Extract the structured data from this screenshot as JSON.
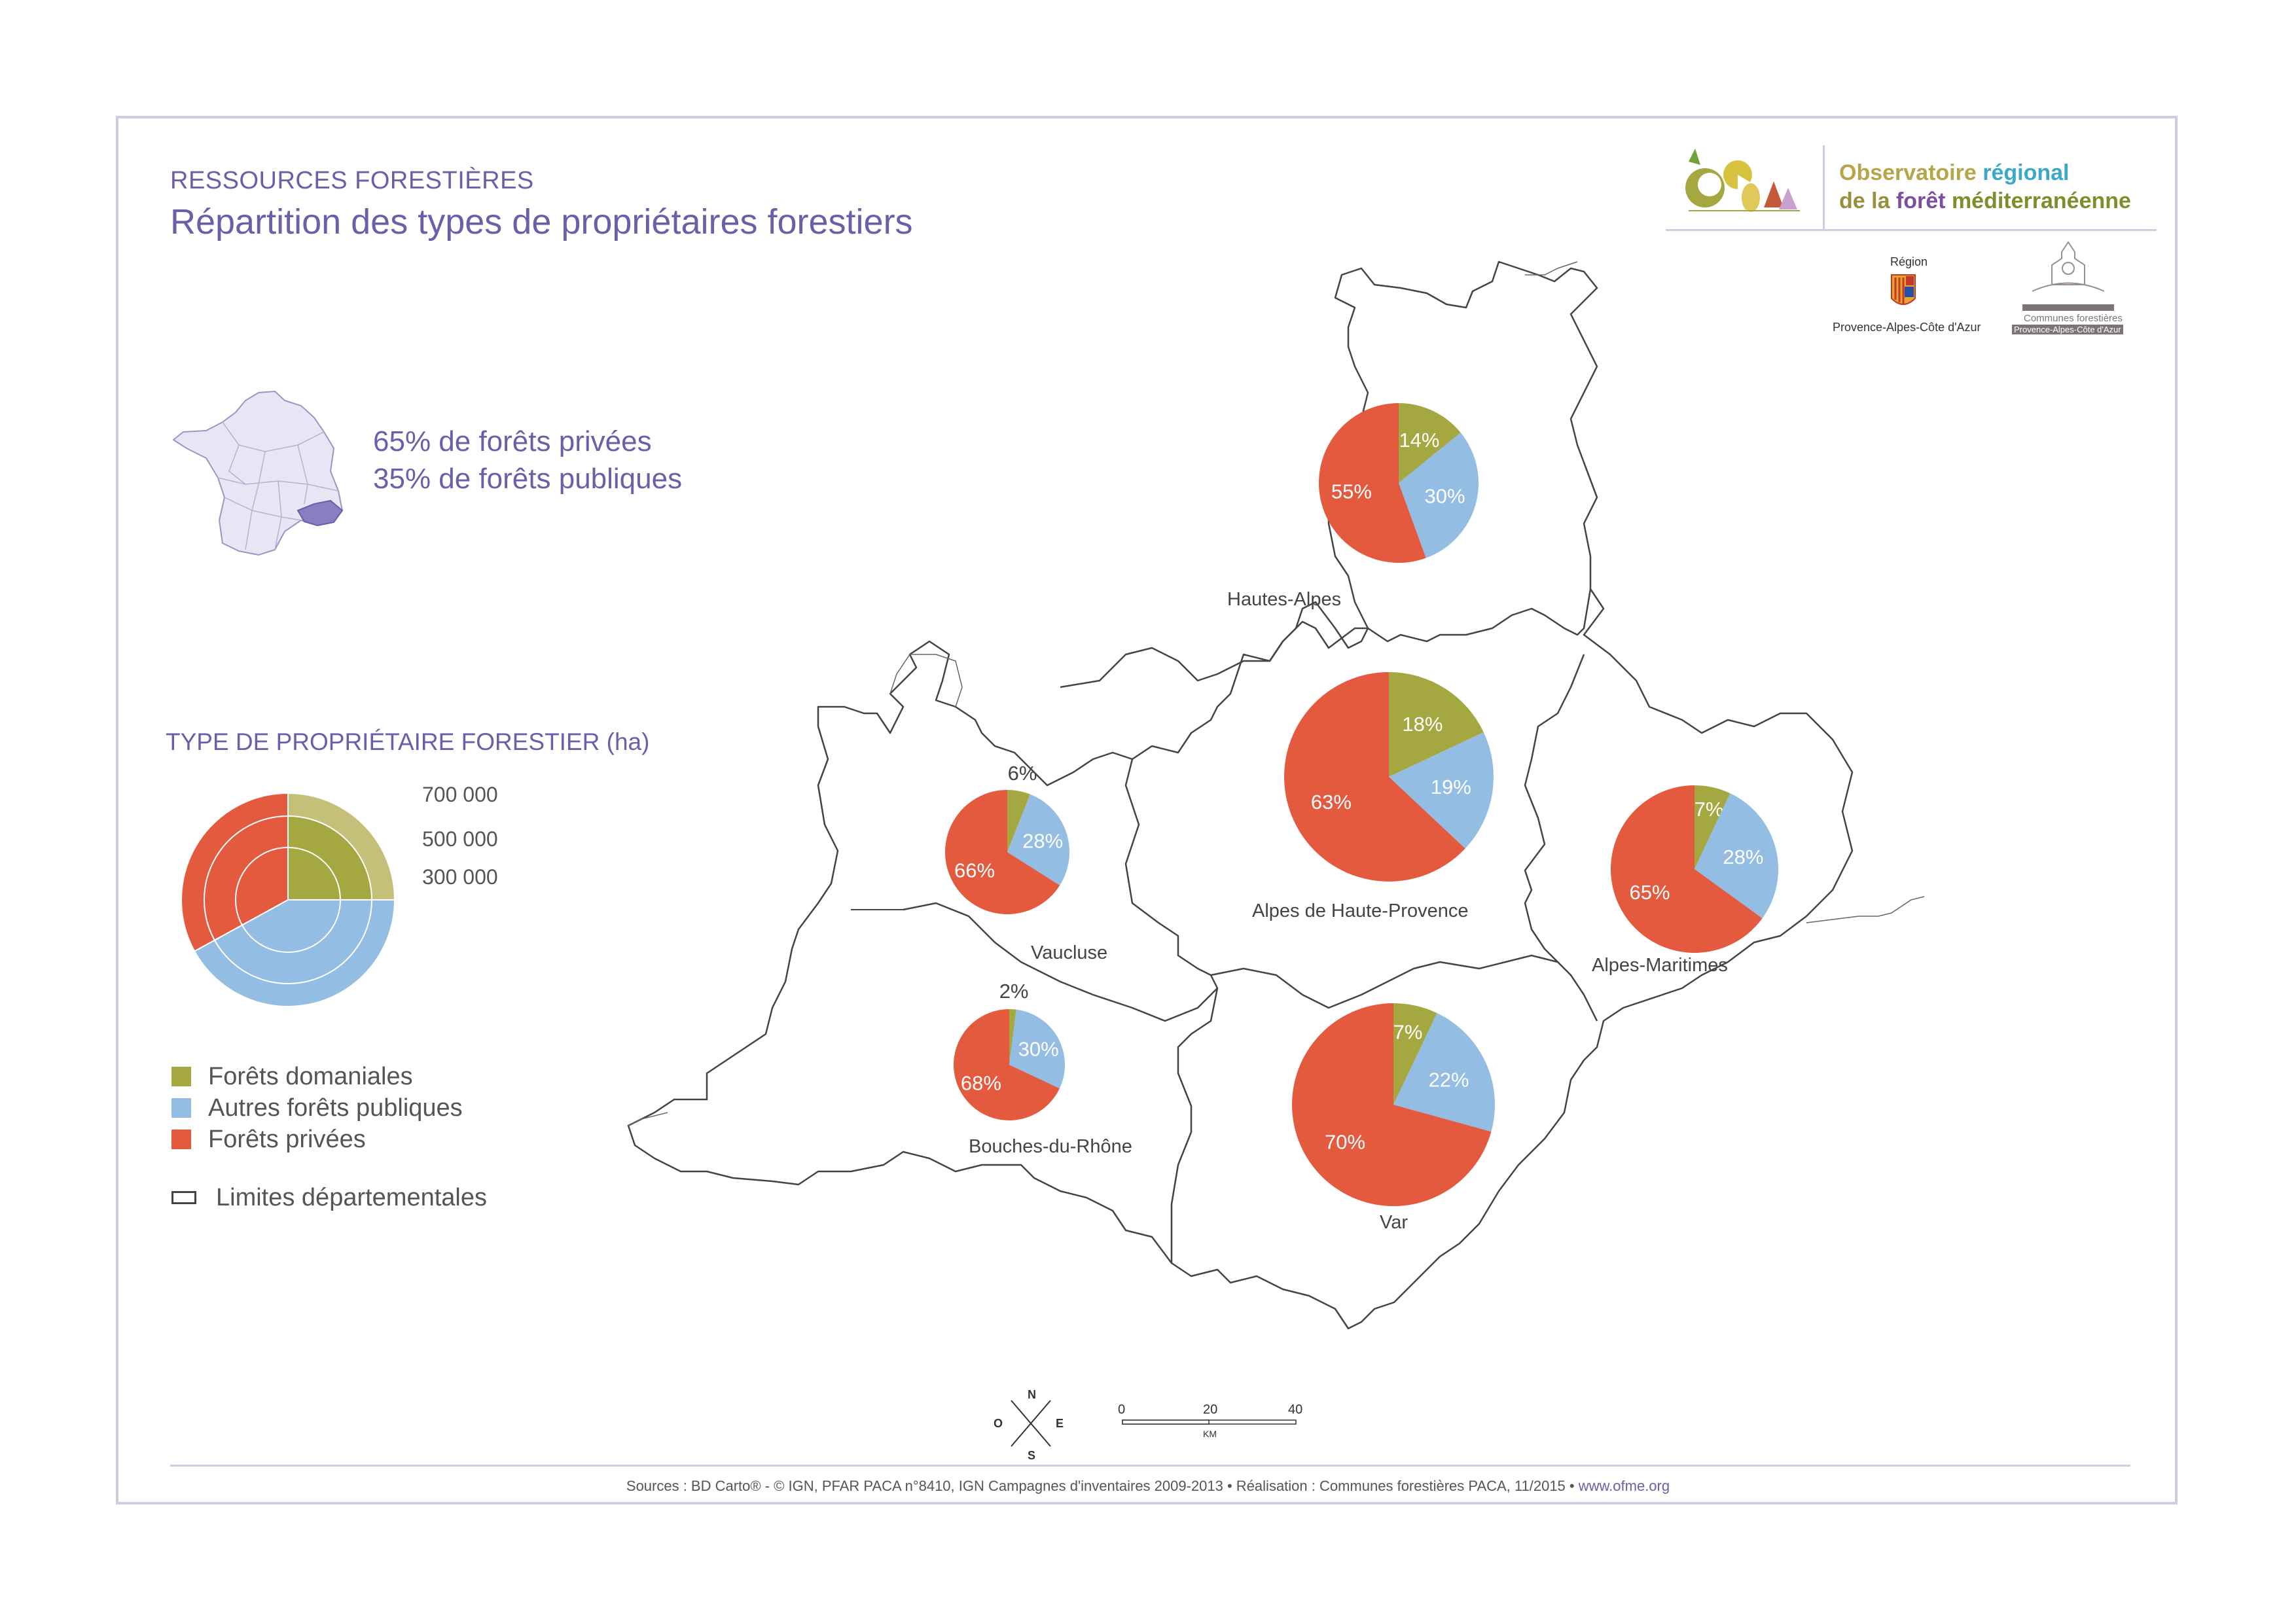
{
  "header": {
    "subtitle": "RESSOURCES FORESTIÈRES",
    "title": "Répartition des types de propriétaires forestiers"
  },
  "france_stats": {
    "line1": "65% de forêts privées",
    "line2": "35% de forêts publiques"
  },
  "legend": {
    "title": "TYPE DE PROPRIÉTAIRE FORESTIER (ha)",
    "sizes": [
      "700 000",
      "500 000",
      "300 000"
    ],
    "categories": [
      {
        "label": "Forêts domaniales",
        "color": "#a5a741"
      },
      {
        "label": "Autres forêts publiques",
        "color": "#93bde2"
      },
      {
        "label": "Forêts privées",
        "color": "#e45a3f"
      }
    ],
    "boundary_label": "Limites départementales"
  },
  "colors": {
    "domaniales": "#a5a741",
    "autres_publiques": "#93bde2",
    "privees": "#e45a3f",
    "accent": "#6a5fa8",
    "border": "#cfcbe3"
  },
  "chart_data": {
    "type": "pie",
    "series_order": [
      "Forêts domaniales",
      "Autres forêts publiques",
      "Forêts privées"
    ],
    "departments": [
      {
        "name": "Hautes-Alpes",
        "values": [
          14,
          30,
          55
        ],
        "labels": [
          "14%",
          "30%",
          "55%"
        ]
      },
      {
        "name": "Alpes de Haute-Provence",
        "values": [
          18,
          19,
          63
        ],
        "labels": [
          "18%",
          "19%",
          "63%"
        ]
      },
      {
        "name": "Alpes-Maritimes",
        "values": [
          7,
          28,
          65
        ],
        "labels": [
          "7%",
          "28%",
          "65%"
        ]
      },
      {
        "name": "Vaucluse",
        "values": [
          6,
          28,
          66
        ],
        "labels": [
          "6%",
          "28%",
          "66%"
        ]
      },
      {
        "name": "Bouches-du-Rhône",
        "values": [
          2,
          30,
          68
        ],
        "labels": [
          "2%",
          "30%",
          "68%"
        ]
      },
      {
        "name": "Var",
        "values": [
          7,
          22,
          70
        ],
        "labels": [
          "7%",
          "22%",
          "70%"
        ]
      }
    ]
  },
  "logos": {
    "observatoire_line1_a": "Observatoire ",
    "observatoire_line1_b": "régional",
    "observatoire_line2_a": "de la ",
    "observatoire_line2_b": "forêt ",
    "observatoire_line2_c": "méditerranéenne",
    "region_top": "Région",
    "region_bottom": "Provence-Alpes-Côte d'Azur",
    "communes_line1": "Communes forestières",
    "communes_line2": "Provence-Alpes-Côte d'Azur"
  },
  "compass": {
    "n": "N",
    "s": "S",
    "e": "E",
    "o": "O"
  },
  "scale": {
    "ticks": [
      "0",
      "20",
      "40"
    ],
    "unit": "KM"
  },
  "footer": {
    "sources": "Sources : BD Carto® - © IGN, PFAR PACA n°8410,  IGN Campagnes d'inventaires 2009-2013  • Réalisation : Communes forestières PACA, 11/2015 • ",
    "url": "www.ofme.org"
  }
}
